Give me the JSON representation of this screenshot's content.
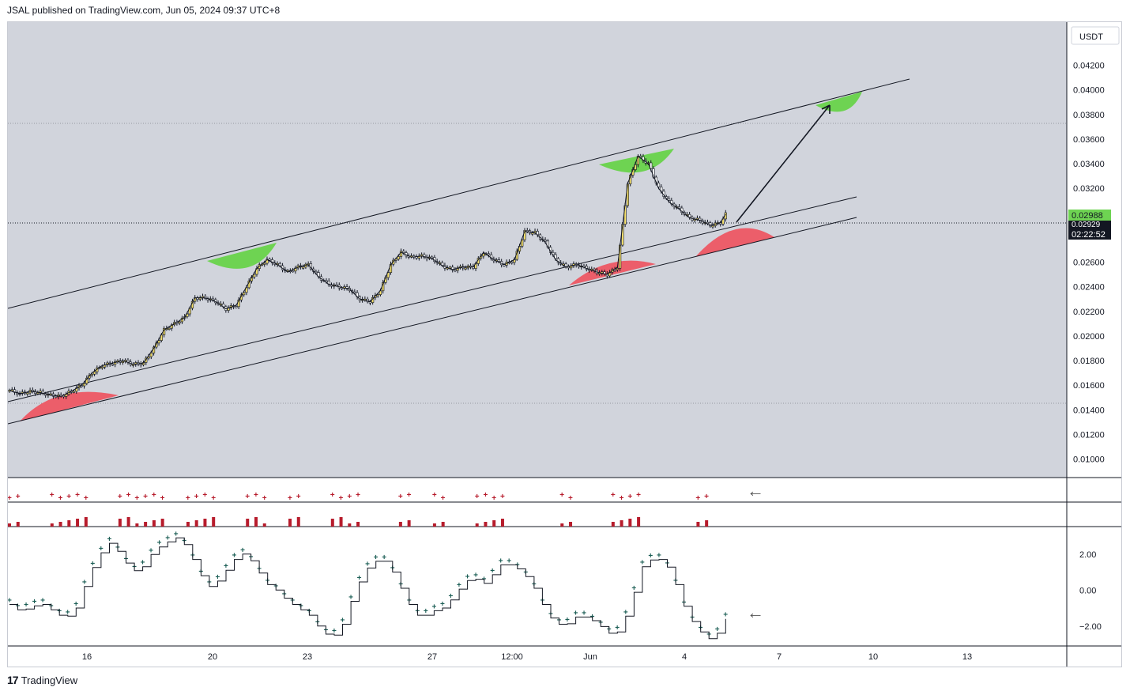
{
  "header": {
    "published_text": "JSAL published on TradingView.com, Jun 05, 2024 09:37 UTC+8"
  },
  "currency": "USDT",
  "last_price": "0.02988",
  "countdown": "02:22:52",
  "behind_label": "0.02929",
  "footer": {
    "brand": "TradingView"
  },
  "colors": {
    "bull": "#f5e06b",
    "bear": "#ffffff",
    "green_dome": "#6ed352",
    "red_dome": "#ec5e6a",
    "indicator_red": "#b71c2c",
    "oscillator": "#1b5e55",
    "background": "#d1d4dc"
  },
  "chart_data": {
    "type": "candlestick",
    "price_axis": {
      "ticks": [
        "0.04200",
        "0.04000",
        "0.03800",
        "0.03600",
        "0.03400",
        "0.03200",
        "0.02600",
        "0.02400",
        "0.02200",
        "0.02000",
        "0.01800",
        "0.01600",
        "0.01400",
        "0.01200",
        "0.01000"
      ],
      "range": [
        0.0085,
        0.0455
      ]
    },
    "time_axis": {
      "ticks": [
        "16",
        "20",
        "23",
        "27",
        "12:00",
        "Jun",
        "4",
        "7",
        "10",
        "13"
      ]
    },
    "price_series": [
      [
        0,
        0.0156
      ],
      [
        4,
        0.0153
      ],
      [
        8,
        0.0155
      ],
      [
        12,
        0.0154
      ],
      [
        16,
        0.0152
      ],
      [
        20,
        0.0151
      ],
      [
        24,
        0.0155
      ],
      [
        28,
        0.016
      ],
      [
        32,
        0.017
      ],
      [
        36,
        0.0176
      ],
      [
        40,
        0.0178
      ],
      [
        44,
        0.018
      ],
      [
        48,
        0.0177
      ],
      [
        52,
        0.0178
      ],
      [
        56,
        0.019
      ],
      [
        60,
        0.0205
      ],
      [
        64,
        0.021
      ],
      [
        68,
        0.0215
      ],
      [
        72,
        0.0231
      ],
      [
        76,
        0.0231
      ],
      [
        80,
        0.0228
      ],
      [
        84,
        0.0222
      ],
      [
        88,
        0.0225
      ],
      [
        92,
        0.024
      ],
      [
        96,
        0.0255
      ],
      [
        100,
        0.0262
      ],
      [
        104,
        0.0258
      ],
      [
        108,
        0.0252
      ],
      [
        112,
        0.0256
      ],
      [
        116,
        0.0258
      ],
      [
        120,
        0.0248
      ],
      [
        124,
        0.0242
      ],
      [
        128,
        0.024
      ],
      [
        132,
        0.0238
      ],
      [
        136,
        0.023
      ],
      [
        140,
        0.0228
      ],
      [
        144,
        0.0237
      ],
      [
        148,
        0.0258
      ],
      [
        152,
        0.0268
      ],
      [
        156,
        0.0264
      ],
      [
        160,
        0.0265
      ],
      [
        164,
        0.0263
      ],
      [
        168,
        0.0257
      ],
      [
        172,
        0.0254
      ],
      [
        176,
        0.0256
      ],
      [
        180,
        0.0256
      ],
      [
        184,
        0.0268
      ],
      [
        188,
        0.0262
      ],
      [
        192,
        0.0258
      ],
      [
        196,
        0.0262
      ],
      [
        200,
        0.0285
      ],
      [
        204,
        0.0284
      ],
      [
        208,
        0.0276
      ],
      [
        212,
        0.0262
      ],
      [
        216,
        0.0256
      ],
      [
        220,
        0.0258
      ],
      [
        224,
        0.0255
      ],
      [
        228,
        0.0252
      ],
      [
        232,
        0.025
      ],
      [
        236,
        0.0256
      ],
      [
        240,
        0.0324
      ],
      [
        244,
        0.0346
      ],
      [
        248,
        0.034
      ],
      [
        252,
        0.032
      ],
      [
        256,
        0.0309
      ],
      [
        260,
        0.0303
      ],
      [
        264,
        0.0296
      ],
      [
        268,
        0.0294
      ],
      [
        272,
        0.029
      ],
      [
        276,
        0.0292
      ],
      [
        278,
        0.0299
      ]
    ],
    "indicator_tops": [
      1,
      1,
      0,
      0,
      0,
      1,
      1,
      1,
      1,
      1,
      0,
      0,
      0,
      1,
      1,
      1,
      1,
      1,
      1,
      0,
      0,
      1,
      1,
      1,
      1,
      0,
      0,
      0,
      1,
      1,
      1,
      0,
      0,
      1,
      1,
      0,
      0,
      0,
      1,
      1,
      1,
      1,
      0,
      0,
      0,
      0,
      1,
      1,
      0,
      0,
      1,
      1,
      0,
      0,
      0,
      1,
      1,
      1,
      1,
      0,
      0,
      0,
      0,
      0,
      0,
      1,
      1,
      0,
      0,
      0,
      0,
      1,
      1,
      1,
      1,
      0,
      0,
      0,
      0,
      0,
      0,
      1,
      1,
      0,
      0
    ],
    "oscillator_range": [
      -2.8,
      3.0
    ],
    "oscillator_ticks": [
      "2.00",
      "0.00",
      "−2.00"
    ],
    "oscillator_series": [
      [
        0,
        -0.8
      ],
      [
        4,
        -1.2
      ],
      [
        8,
        -0.9
      ],
      [
        12,
        -0.8
      ],
      [
        16,
        -1.2
      ],
      [
        20,
        -1.6
      ],
      [
        24,
        -1.0
      ],
      [
        28,
        0.6
      ],
      [
        32,
        1.9
      ],
      [
        36,
        2.6
      ],
      [
        40,
        2.0
      ],
      [
        44,
        1.0
      ],
      [
        48,
        1.3
      ],
      [
        52,
        2.2
      ],
      [
        56,
        2.6
      ],
      [
        60,
        2.9
      ],
      [
        64,
        2.4
      ],
      [
        68,
        1.0
      ],
      [
        72,
        0.2
      ],
      [
        76,
        0.6
      ],
      [
        80,
        1.6
      ],
      [
        84,
        2.0
      ],
      [
        88,
        1.5
      ],
      [
        92,
        0.4
      ],
      [
        96,
        0.0
      ],
      [
        100,
        -0.6
      ],
      [
        104,
        -1.0
      ],
      [
        108,
        -1.4
      ],
      [
        112,
        -2.2
      ],
      [
        116,
        -2.7
      ],
      [
        120,
        -1.9
      ],
      [
        124,
        -0.2
      ],
      [
        128,
        1.1
      ],
      [
        132,
        1.6
      ],
      [
        136,
        1.6
      ],
      [
        140,
        0.4
      ],
      [
        144,
        -0.8
      ],
      [
        148,
        -1.6
      ],
      [
        152,
        -1.2
      ],
      [
        156,
        -1.0
      ],
      [
        160,
        -0.4
      ],
      [
        164,
        0.5
      ],
      [
        168,
        0.6
      ],
      [
        172,
        0.3
      ],
      [
        176,
        1.4
      ],
      [
        180,
        1.4
      ],
      [
        184,
        1.1
      ],
      [
        188,
        0.4
      ],
      [
        192,
        -0.8
      ],
      [
        196,
        -1.8
      ],
      [
        200,
        -2.0
      ],
      [
        204,
        -1.5
      ],
      [
        208,
        -1.5
      ],
      [
        212,
        -1.9
      ],
      [
        216,
        -2.4
      ],
      [
        220,
        -2.3
      ],
      [
        224,
        -0.6
      ],
      [
        228,
        1.3
      ],
      [
        232,
        1.8
      ],
      [
        236,
        1.6
      ],
      [
        240,
        0.3
      ],
      [
        244,
        -1.3
      ],
      [
        248,
        -2.2
      ],
      [
        252,
        -2.7
      ],
      [
        256,
        -2.3
      ],
      [
        258,
        -1.6
      ]
    ]
  }
}
